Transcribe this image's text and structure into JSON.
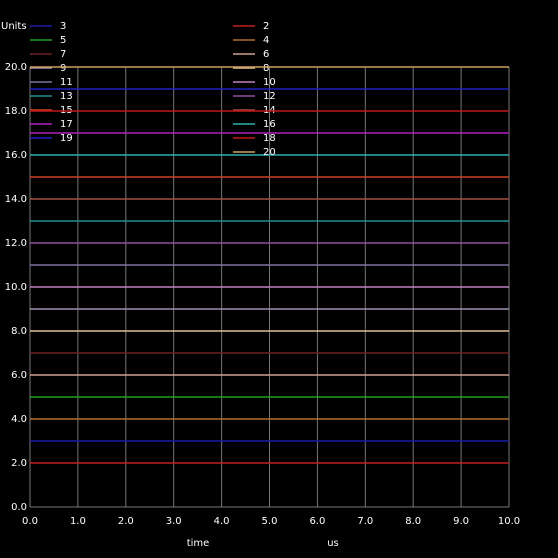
{
  "chart_data": {
    "type": "line",
    "y_label": "Units",
    "x_label": "time",
    "x_unit": "us",
    "xlim": [
      0,
      10
    ],
    "ylim": [
      0,
      20
    ],
    "grid": true,
    "xticks": [
      {
        "value": 0,
        "label": "0.0"
      },
      {
        "value": 1,
        "label": "1.0"
      },
      {
        "value": 2,
        "label": "2.0"
      },
      {
        "value": 3,
        "label": "3.0"
      },
      {
        "value": 4,
        "label": "4.0"
      },
      {
        "value": 5,
        "label": "5.0"
      },
      {
        "value": 6,
        "label": "6.0"
      },
      {
        "value": 7,
        "label": "7.0"
      },
      {
        "value": 8,
        "label": "8.0"
      },
      {
        "value": 9,
        "label": "9.0"
      },
      {
        "value": 10,
        "label": "10.0"
      }
    ],
    "yticks": [
      {
        "value": 0,
        "label": "0.0"
      },
      {
        "value": 2,
        "label": "2.0"
      },
      {
        "value": 4,
        "label": "4.0"
      },
      {
        "value": 6,
        "label": "6.0"
      },
      {
        "value": 8,
        "label": "8.0"
      },
      {
        "value": 10,
        "label": "10.0"
      },
      {
        "value": 12,
        "label": "12.0"
      },
      {
        "value": 14,
        "label": "14.0"
      },
      {
        "value": 16,
        "label": "16.0"
      },
      {
        "value": 18,
        "label": "18.0"
      },
      {
        "value": 20,
        "label": "20.0"
      }
    ],
    "x": [
      0,
      10
    ],
    "series": [
      {
        "name": "2",
        "color": "#c02020",
        "values": [
          2,
          2
        ]
      },
      {
        "name": "3",
        "color": "#1a1aa8",
        "values": [
          3,
          3
        ]
      },
      {
        "name": "4",
        "color": "#b07030",
        "values": [
          4,
          4
        ]
      },
      {
        "name": "5",
        "color": "#20a020",
        "values": [
          5,
          5
        ]
      },
      {
        "name": "6",
        "color": "#d0a090",
        "values": [
          6,
          6
        ]
      },
      {
        "name": "7",
        "color": "#702020",
        "values": [
          7,
          7
        ]
      },
      {
        "name": "8",
        "color": "#e0c090",
        "values": [
          8,
          8
        ]
      },
      {
        "name": "9",
        "color": "#a090b0",
        "values": [
          9,
          9
        ]
      },
      {
        "name": "10",
        "color": "#c080c0",
        "values": [
          10,
          10
        ]
      },
      {
        "name": "11",
        "color": "#8070a0",
        "values": [
          11,
          11
        ]
      },
      {
        "name": "12",
        "color": "#9050a0",
        "values": [
          12,
          12
        ]
      },
      {
        "name": "13",
        "color": "#209090",
        "values": [
          13,
          13
        ]
      },
      {
        "name": "14",
        "color": "#a05040",
        "values": [
          14,
          14
        ]
      },
      {
        "name": "15",
        "color": "#d04020",
        "values": [
          15,
          15
        ]
      },
      {
        "name": "16",
        "color": "#30b0b0",
        "values": [
          16,
          16
        ]
      },
      {
        "name": "17",
        "color": "#b020c0",
        "values": [
          17,
          17
        ]
      },
      {
        "name": "18",
        "color": "#c01818",
        "values": [
          18,
          18
        ]
      },
      {
        "name": "19",
        "color": "#2020c0",
        "values": [
          19,
          19
        ]
      },
      {
        "name": "20",
        "color": "#d0a060",
        "values": [
          20,
          20
        ]
      }
    ]
  }
}
